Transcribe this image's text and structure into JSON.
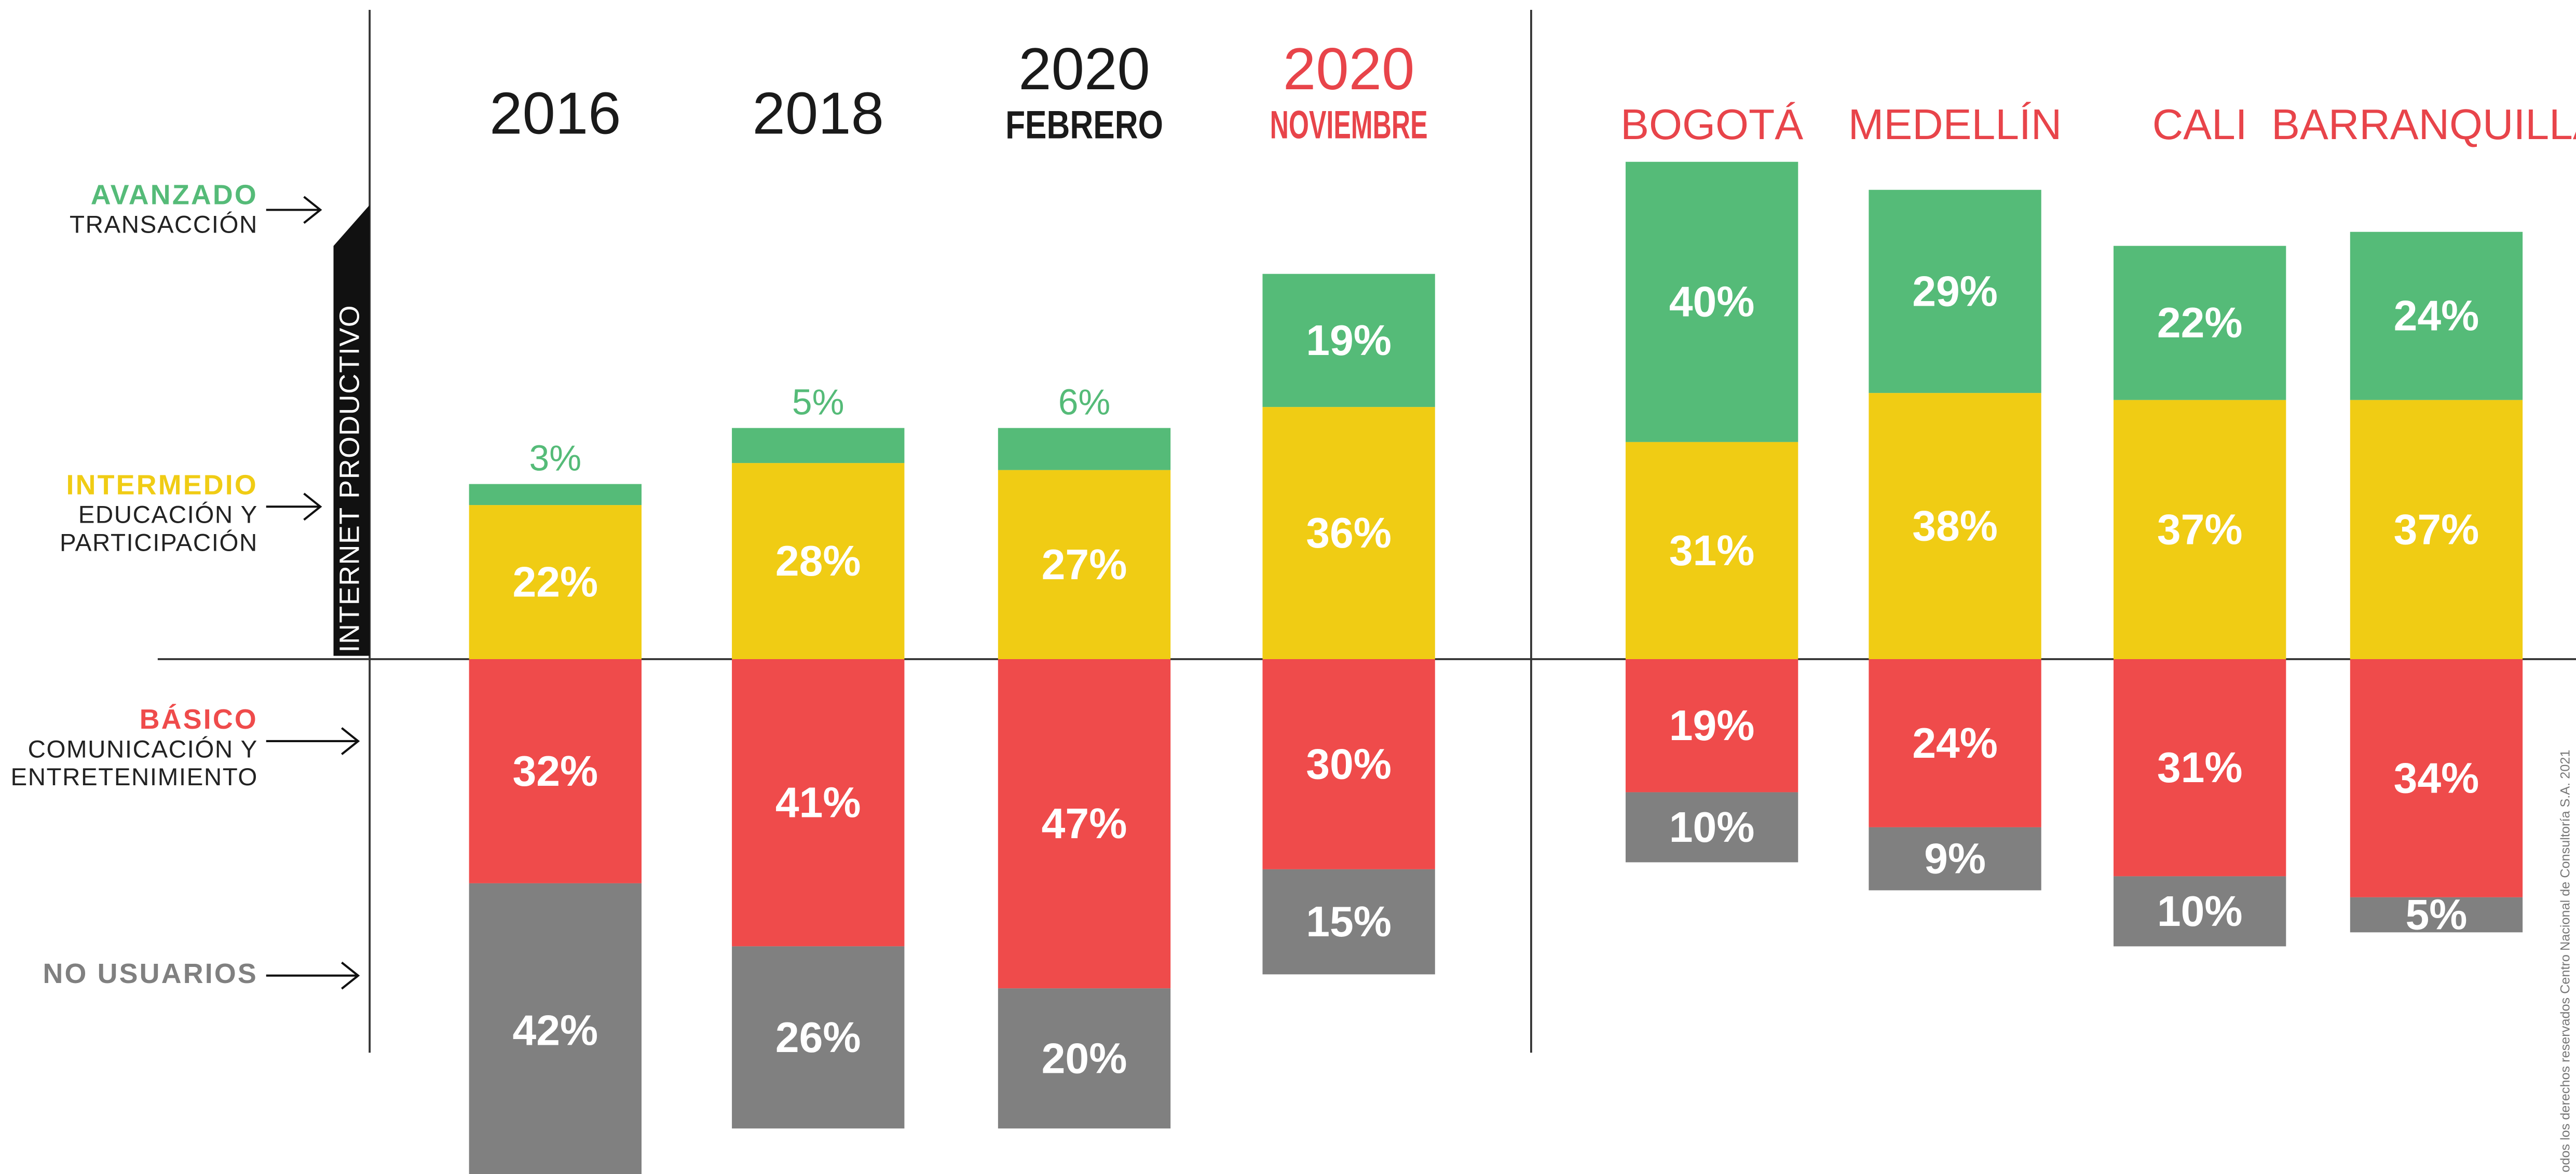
{
  "chart_data": {
    "type": "diverging-stacked-bar",
    "categories": [
      "2016",
      "2018",
      "2020",
      "2020",
      "BOGOTÁ",
      "MEDELLÍN",
      "CALI",
      "BARRANQUILLA"
    ],
    "category_sublabels": [
      null,
      null,
      "FEBRERO",
      "NOVIEMBRE",
      null,
      null,
      null,
      null
    ],
    "category_colors": [
      "#1a1a1a",
      "#1a1a1a",
      "#1a1a1a",
      "#e8444a",
      "#e8444a",
      "#e8444a",
      "#e8444a",
      "#e8444a"
    ],
    "series": [
      {
        "name": "AVANZADO",
        "description": [
          "TRANSACCIÓN"
        ],
        "color": "#55bb78",
        "side": "up",
        "values": [
          3,
          5,
          6,
          19,
          40,
          29,
          22,
          24
        ],
        "value_labels": [
          "3%",
          "5%",
          "6%",
          "19%",
          "40%",
          "29%",
          "22%",
          "24%"
        ]
      },
      {
        "name": "INTERMEDIO",
        "description": [
          "EDUCACIÓN Y",
          "PARTICIPACIÓN"
        ],
        "color": "#f0cc14",
        "side": "up",
        "values": [
          22,
          28,
          27,
          36,
          31,
          38,
          37,
          37
        ],
        "value_labels": [
          "22%",
          "28%",
          "27%",
          "36%",
          "31%",
          "38%",
          "37%",
          "37%"
        ]
      },
      {
        "name": "BÁSICO",
        "description": [
          "COMUNICACIÓN Y",
          "ENTRETENIMIENTO"
        ],
        "color": "#ef4b4b",
        "side": "down",
        "values": [
          32,
          41,
          47,
          30,
          19,
          24,
          31,
          34
        ],
        "value_labels": [
          "32%",
          "41%",
          "47%",
          "30%",
          "19%",
          "24%",
          "31%",
          "34%"
        ]
      },
      {
        "name": "NO USUARIOS",
        "color": "#808080",
        "side": "down",
        "values": [
          42,
          26,
          20,
          15,
          10,
          9,
          10,
          5
        ],
        "value_labels": [
          "42%",
          "26%",
          "20%",
          "15%",
          "10%",
          "9%",
          "10%",
          "5%"
        ]
      }
    ],
    "ylim": [
      -73.5,
      94.1
    ],
    "annotations": [
      "INTERNET PRODUCTIVO",
      "odos los derechos reservados Centro Nacional de Consultoría S.A. 2021"
    ]
  }
}
